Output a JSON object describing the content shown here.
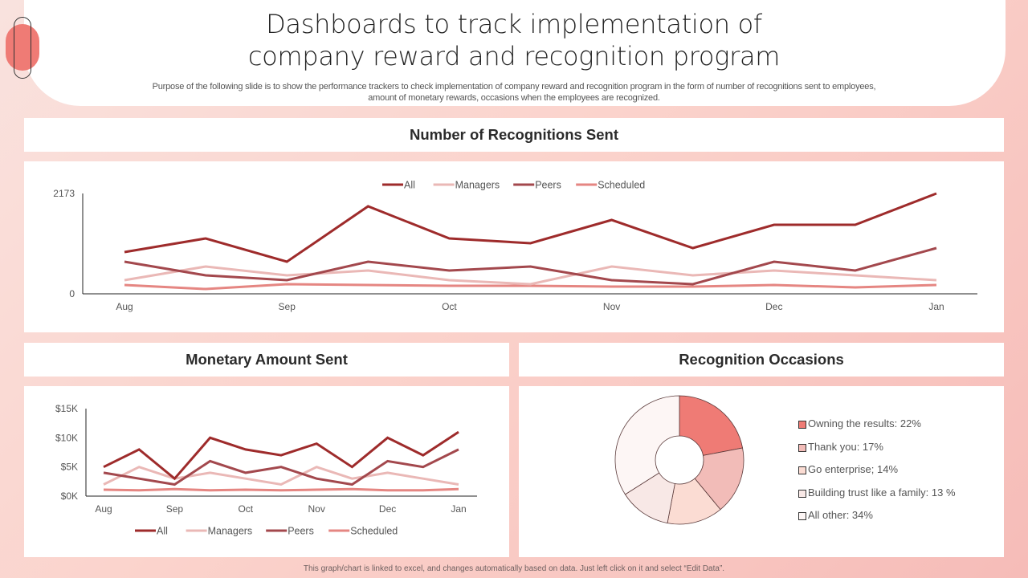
{
  "header": {
    "title_line1": "Dashboards to track implementation of",
    "title_line2": "company reward and recognition program",
    "subtitle_line1": "Purpose of the following slide is to show the performance trackers to check implementation of company reward and recognition program in the form of number of recognitions sent to employees,",
    "subtitle_line2": "amount of monetary rewards, occasions when the employees are recognized."
  },
  "panels": {
    "recognitions_title": "Number of Recognitions Sent",
    "monetary_title": "Monetary Amount Sent",
    "occasions_title": "Recognition Occasions"
  },
  "footer": "This graph/chart is linked to excel, and changes automatically based on data. Just left click on it and select “Edit Data”.",
  "colors": {
    "all": "#9e2b2b",
    "managers": "#eab8b6",
    "peers": "#a3484d",
    "scheduled": "#e58682",
    "accent": "#ef7b75"
  },
  "chart_data": [
    {
      "type": "line",
      "title": "Number of Recognitions Sent",
      "xlabel": "",
      "ylabel": "",
      "x": [
        "Aug",
        "",
        "Sep",
        "",
        "Oct",
        "",
        "Nov",
        "",
        "Dec",
        "",
        "Jan"
      ],
      "x_tick_labels": [
        "Aug",
        "Sep",
        "Oct",
        "Nov",
        "Dec",
        "Jan"
      ],
      "y_tick_labels": [
        "0",
        "2173"
      ],
      "ylim": [
        0,
        2173
      ],
      "grid": false,
      "legend": "top-center",
      "series": [
        {
          "name": "All",
          "values": [
            904,
            1199,
            695,
            1895,
            1199,
            1095,
            1599,
            991,
            1495,
            1495,
            2173
          ]
        },
        {
          "name": "Managers",
          "values": [
            295,
            591,
            400,
            504,
            295,
            209,
            591,
            400,
            504,
            400,
            295
          ]
        },
        {
          "name": "Peers",
          "values": [
            695,
            400,
            295,
            695,
            504,
            591,
            295,
            209,
            695,
            504,
            991
          ]
        },
        {
          "name": "Scheduled",
          "values": [
            191,
            104,
            209,
            191,
            174,
            174,
            156,
            156,
            191,
            139,
            191
          ]
        }
      ]
    },
    {
      "type": "line",
      "title": "Monetary Amount Sent",
      "xlabel": "",
      "ylabel": "",
      "x": [
        "Aug",
        "",
        "Sep",
        "",
        "Oct",
        "",
        "Nov",
        "",
        "Dec",
        "",
        "Jan"
      ],
      "x_tick_labels": [
        "Aug",
        "Sep",
        "Oct",
        "Nov",
        "Dec",
        "Jan"
      ],
      "y_tick_labels": [
        "$0K",
        "$5K",
        "$10K",
        "$15K"
      ],
      "ylim": [
        0,
        15000
      ],
      "grid": false,
      "legend": "bottom-center",
      "series": [
        {
          "name": "All",
          "values": [
            5000,
            8000,
            3000,
            10000,
            8000,
            7000,
            9000,
            5000,
            10000,
            7000,
            11000
          ]
        },
        {
          "name": "Managers",
          "values": [
            2000,
            5000,
            3000,
            4000,
            3000,
            2000,
            5000,
            3000,
            4000,
            3000,
            2000
          ]
        },
        {
          "name": "Peers",
          "values": [
            4000,
            3000,
            2000,
            6000,
            4000,
            5000,
            3000,
            2000,
            6000,
            5000,
            8000
          ]
        },
        {
          "name": "Scheduled",
          "values": [
            1100,
            1000,
            1200,
            1000,
            1100,
            1000,
            1100,
            1200,
            1000,
            1000,
            1200
          ]
        }
      ]
    },
    {
      "type": "pie",
      "variant": "donut",
      "title": "Recognition Occasions",
      "legend": "right",
      "slices": [
        {
          "label": "Owning the results: 22%",
          "name": "Owning the results",
          "value": 22,
          "color": "#ef7b75"
        },
        {
          "label": "Thank you: 17%",
          "name": "Thank you",
          "value": 17,
          "color": "#f2bcb8"
        },
        {
          "label": "Go enterprise; 14%",
          "name": "Go enterprise",
          "value": 14,
          "color": "#fbdcd3"
        },
        {
          "label": "Building trust like a family: 13 %",
          "name": "Building trust like a family",
          "value": 13,
          "color": "#f8e8e6"
        },
        {
          "label": "All other: 34%",
          "name": "All other",
          "value": 34,
          "color": "#fdf6f5"
        }
      ]
    }
  ]
}
